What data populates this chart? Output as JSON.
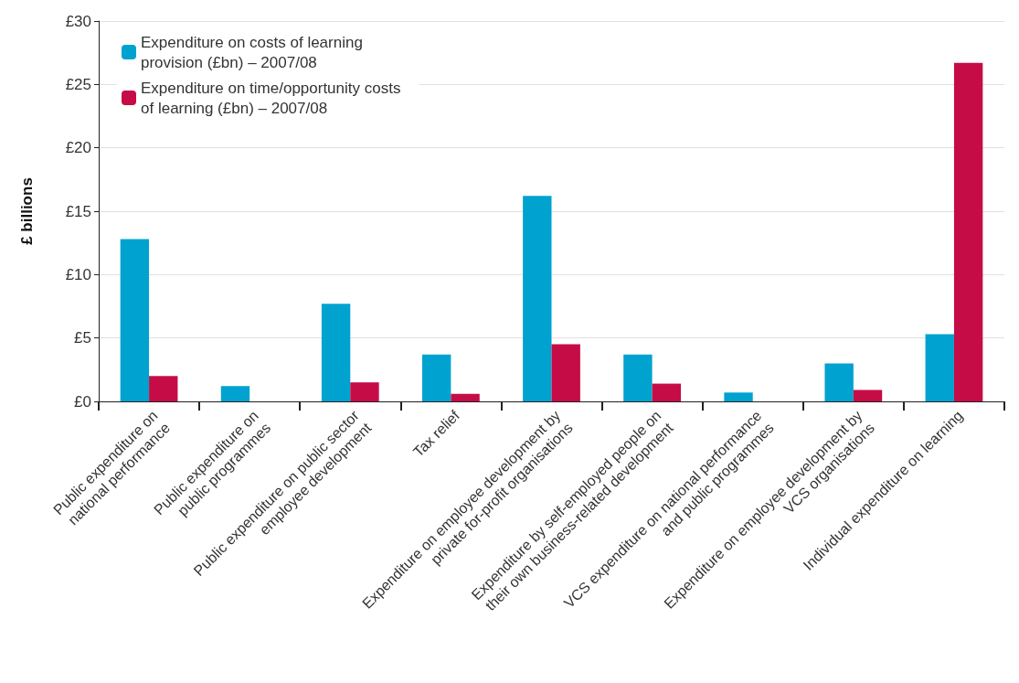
{
  "chart_data": {
    "type": "bar",
    "ylabel": "£ billions",
    "categories": [
      "Public expenditure on\nnational performance",
      "Public expenditure on\npublic programmes",
      "Public expenditure on public sector\nemployee development",
      "Tax relief",
      "Expenditure on employee development by\nprivate for-profit organisations",
      "Expenditure by self-employed people on\ntheir own business-related development",
      "VCS expenditure on national performance\nand public programmes",
      "Expenditure on employee development by\nVCS organisations",
      "Individual expenditure on learning"
    ],
    "series": [
      {
        "name": "Expenditure on costs of learning provision (£bn) – 2007/08",
        "color": "#00a2cf",
        "values": [
          12.8,
          1.2,
          7.7,
          3.7,
          16.2,
          3.7,
          0.7,
          3.0,
          5.3
        ]
      },
      {
        "name": "Expenditure on time/opportunity costs of learning (£bn) – 2007/08",
        "color": "#c60c46",
        "values": [
          2.0,
          null,
          1.5,
          0.6,
          4.5,
          1.4,
          null,
          0.9,
          26.7
        ]
      }
    ],
    "ylim": [
      0,
      30
    ],
    "yticks": [
      {
        "value": 0,
        "label": "£0"
      },
      {
        "value": 5,
        "label": "£5"
      },
      {
        "value": 10,
        "label": "£10"
      },
      {
        "value": 15,
        "label": "£15"
      },
      {
        "value": 20,
        "label": "£20"
      },
      {
        "value": 25,
        "label": "£25"
      },
      {
        "value": 30,
        "label": "£30"
      }
    ],
    "grid": "y",
    "legend": "top left"
  }
}
